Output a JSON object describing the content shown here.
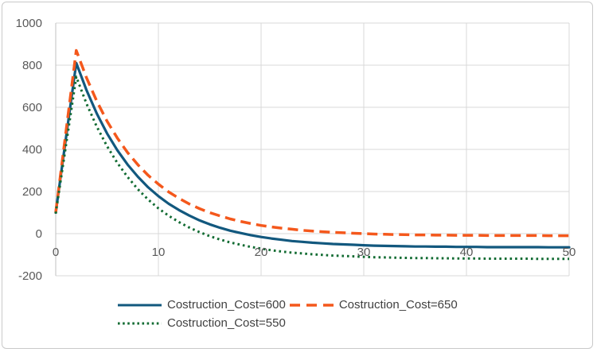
{
  "figure": {
    "background": "#ffffff",
    "border_color": "#c9c9c9"
  },
  "axes": {
    "y_ticks": [
      "1000",
      "800",
      "600",
      "400",
      "200",
      "0",
      "-200"
    ],
    "x_ticks": [
      "0",
      "10",
      "20",
      "30",
      "40",
      "50"
    ],
    "gridline_color": "#d9d9d9",
    "axis_line_color": "#c0c0c0",
    "tick_label_color": "#595959"
  },
  "legend": {
    "text_color": "#404040",
    "position": "bottom"
  },
  "chart_data": {
    "type": "line",
    "title": "",
    "xlabel": "",
    "ylabel": "",
    "xlim": [
      0,
      50
    ],
    "ylim": [
      -200,
      1000
    ],
    "grid": true,
    "legend_position": "bottom",
    "x": [
      0,
      1,
      2,
      3,
      4,
      5,
      6,
      7,
      8,
      9,
      10,
      11,
      12,
      13,
      14,
      15,
      16,
      17,
      18,
      19,
      20,
      21,
      22,
      23,
      24,
      25,
      26,
      27,
      28,
      29,
      30,
      31,
      32,
      33,
      34,
      35,
      36,
      37,
      38,
      39,
      40,
      41,
      42,
      43,
      44,
      45,
      46,
      47,
      48,
      49,
      50
    ],
    "series": [
      {
        "name": "Costruction_Cost=600",
        "color": "#12587e",
        "dash": "solid",
        "values": [
          100,
          455,
          810,
          681,
          570,
          476,
          396,
          328,
          270,
          220,
          178,
          142,
          112,
          86,
          63,
          44,
          28,
          14,
          3,
          -7,
          -16,
          -23,
          -29,
          -35,
          -39,
          -43,
          -46,
          -49,
          -51,
          -53,
          -55,
          -57,
          -58,
          -59,
          -60,
          -61,
          -61,
          -62,
          -62,
          -63,
          -63,
          -63,
          -64,
          -64,
          -64,
          -64,
          -64,
          -64,
          -65,
          -65,
          -65
        ]
      },
      {
        "name": "Costruction_Cost=650",
        "color": "#f4581c",
        "dash": "dashed",
        "values": [
          100,
          485,
          870,
          740,
          629,
          534,
          454,
          385,
          327,
          277,
          235,
          198,
          168,
          141,
          119,
          100,
          84,
          70,
          58,
          48,
          39,
          32,
          26,
          21,
          16,
          12,
          9,
          6,
          4,
          2,
          0,
          -2,
          -3,
          -4,
          -5,
          -6,
          -6,
          -7,
          -7,
          -8,
          -8,
          -8,
          -9,
          -9,
          -9,
          -9,
          -9,
          -9,
          -10,
          -10,
          -10
        ]
      },
      {
        "name": "Costruction_Cost=550",
        "color": "#116b32",
        "dash": "dotted",
        "values": [
          95,
          420,
          745,
          617,
          508,
          415,
          336,
          269,
          211,
          162,
          120,
          85,
          55,
          29,
          7,
          -12,
          -28,
          -42,
          -53,
          -63,
          -71,
          -79,
          -85,
          -90,
          -94,
          -98,
          -101,
          -104,
          -106,
          -108,
          -110,
          -112,
          -113,
          -114,
          -115,
          -116,
          -116,
          -117,
          -117,
          -118,
          -118,
          -118,
          -119,
          -119,
          -119,
          -119,
          -119,
          -120,
          -120,
          -120,
          -120
        ]
      }
    ]
  }
}
